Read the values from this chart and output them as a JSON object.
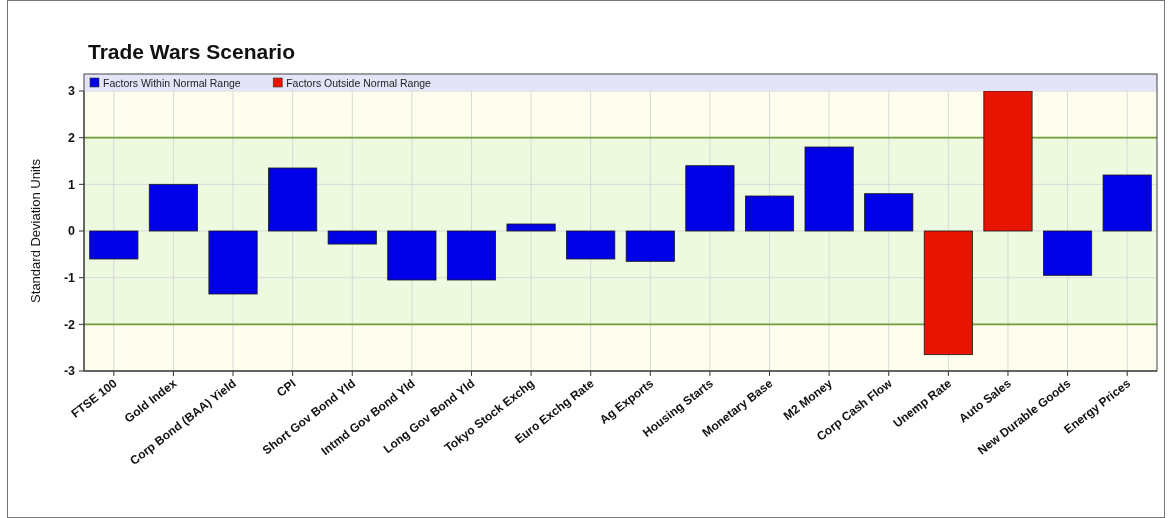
{
  "chart_data": {
    "type": "bar",
    "title": "Trade Wars Scenario",
    "ylabel": "Standard Deviation Units",
    "categories": [
      "FTSE 100",
      "Gold Index",
      "Corp Bond (BAA) Yield",
      "CPI",
      "Short Gov Bond Yld",
      "Intmd Gov Bond Yld",
      "Long Gov Bond Yld",
      "Tokyo Stock Exchg",
      "Euro Exchg Rate",
      "Ag Exports",
      "Housing Starts",
      "Monetary Base",
      "M2 Money",
      "Corp Cash Flow",
      "Unemp Rate",
      "Auto Sales",
      "New Durable Goods",
      "Energy Prices"
    ],
    "series": [
      {
        "name": "Factors Within Normal Range",
        "color": "#0000e6",
        "values": [
          -0.6,
          1.0,
          -1.35,
          1.35,
          -0.28,
          -1.05,
          -1.05,
          0.15,
          -0.6,
          -0.65,
          1.4,
          0.75,
          1.8,
          0.8,
          null,
          null,
          -0.95,
          1.2
        ]
      },
      {
        "name": "Factors Outside Normal Range",
        "color": "#e61400",
        "values": [
          null,
          null,
          null,
          null,
          null,
          null,
          null,
          null,
          null,
          null,
          null,
          null,
          null,
          null,
          -2.65,
          3.0,
          null,
          null
        ]
      }
    ],
    "stacked": true,
    "ylim": [
      -3,
      3
    ],
    "yticks": [
      -3,
      -2,
      -1,
      0,
      1,
      2,
      3
    ],
    "grid": true,
    "legend": "top",
    "bands": [
      {
        "axis": "y",
        "from": -2,
        "to": 2,
        "color": "#eefadf"
      }
    ]
  }
}
